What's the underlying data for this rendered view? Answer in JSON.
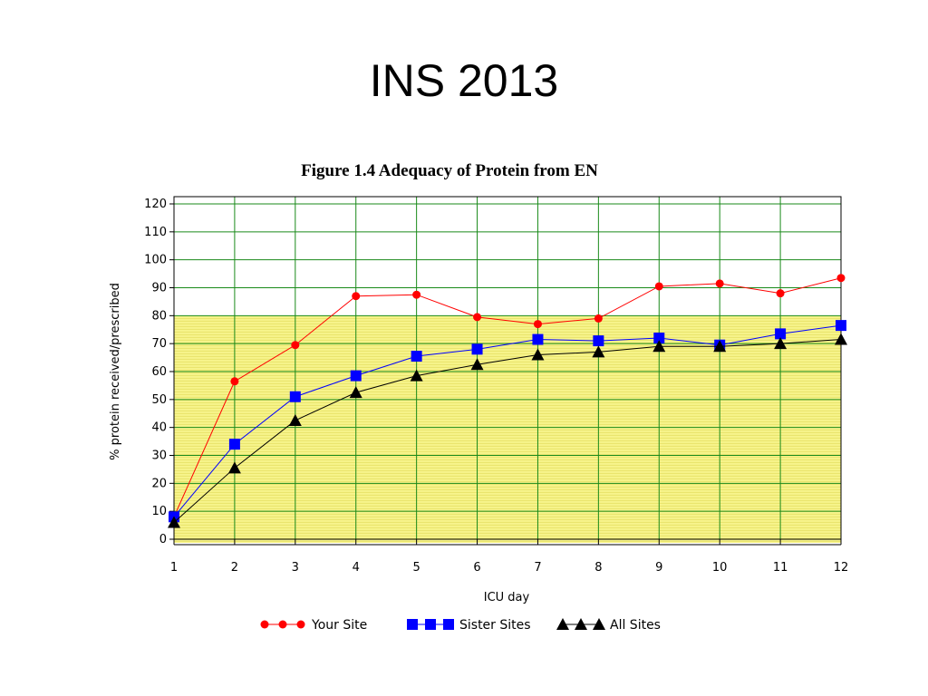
{
  "slide": {
    "title": "INS 2013"
  },
  "chart_data": {
    "type": "line",
    "title": "Figure 1.4 Adequacy of Protein from EN",
    "xlabel": "ICU day",
    "ylabel": "% protein received/prescribed",
    "x": [
      1,
      2,
      3,
      4,
      5,
      6,
      7,
      8,
      9,
      10,
      11,
      12
    ],
    "xlim": [
      1,
      12
    ],
    "ylim": [
      0,
      120
    ],
    "yticks": [
      0,
      10,
      20,
      30,
      40,
      50,
      60,
      70,
      80,
      90,
      100,
      110,
      120
    ],
    "grid": true,
    "highlight_band": {
      "from": 0,
      "to": 80,
      "color": "#f7f48c"
    },
    "grid_color": "#1a8a1a",
    "legend_position": "bottom",
    "series": [
      {
        "name": "Your Site",
        "color": "#ff0000",
        "marker": "circle",
        "values": [
          8,
          56.5,
          69.5,
          87,
          87.5,
          79.5,
          77,
          79,
          90.5,
          91.5,
          88,
          93.5
        ]
      },
      {
        "name": "Sister Sites",
        "color": "#0000ff",
        "marker": "square",
        "values": [
          8,
          34,
          51,
          58.5,
          65.5,
          68,
          71.5,
          71,
          72,
          69.5,
          73.5,
          76.5
        ]
      },
      {
        "name": "All Sites",
        "color": "#000000",
        "marker": "triangle",
        "values": [
          6,
          25.5,
          42.5,
          52.5,
          58.5,
          62.5,
          66,
          67,
          69,
          69,
          70,
          71.5
        ]
      }
    ]
  }
}
